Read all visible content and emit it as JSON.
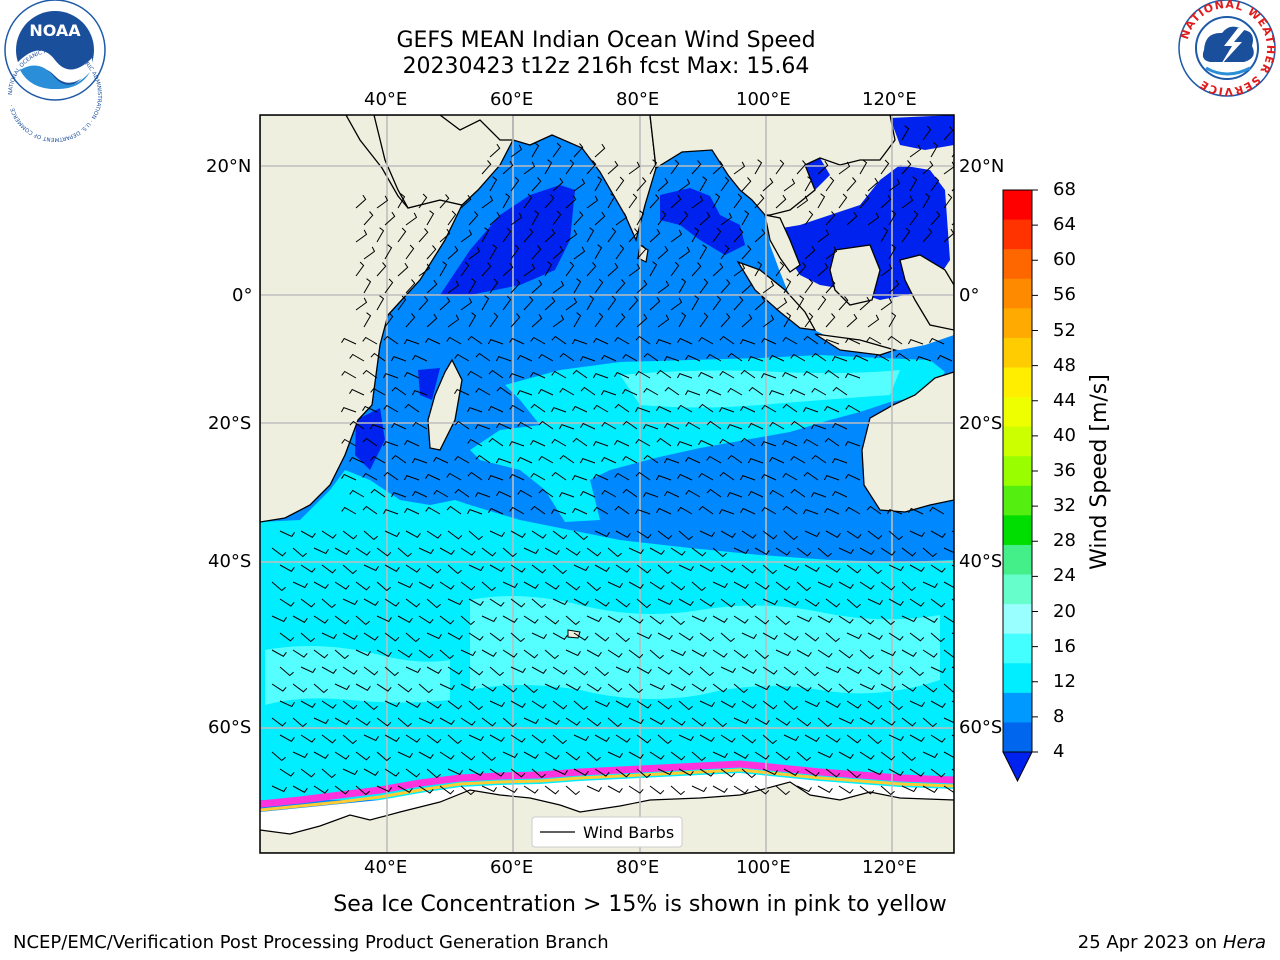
{
  "title": {
    "line1": "GEFS MEAN Indian Ocean Wind Speed",
    "line2": "20230423 t12z 216h fcst   Max: 15.64"
  },
  "map": {
    "lon_labels": [
      "40°E",
      "60°E",
      "80°E",
      "100°E",
      "120°E"
    ],
    "lat_labels": [
      "20°N",
      "0°",
      "20°S",
      "40°S",
      "60°S"
    ],
    "colors": {
      "land": "#efefdf",
      "ice": "#ffffff",
      "grid": "#bdbdbd"
    },
    "legend_label": "Wind Barbs"
  },
  "colorbar": {
    "label": "Wind Speed [m/s]",
    "ticks": [
      "68",
      "64",
      "60",
      "56",
      "52",
      "48",
      "44",
      "40",
      "36",
      "32",
      "28",
      "24",
      "20",
      "16",
      "12",
      "8",
      "4"
    ],
    "colors": [
      "#fe0000",
      "#fe3300",
      "#fe6600",
      "#fe8a00",
      "#feaa00",
      "#fecc00",
      "#ffee00",
      "#eeff00",
      "#ccff00",
      "#99ff00",
      "#55ee11",
      "#00dd00",
      "#44ee88",
      "#66ffcc",
      "#99ffff",
      "#44ffff",
      "#00eeff",
      "#0099ff",
      "#0066ee"
    ],
    "extend_color": "#0022ee"
  },
  "subtitle": "Sea Ice Concentration > 15% is shown in pink to yellow",
  "footer": {
    "left": "NCEP/EMC/Verification Post Processing Product Generation Branch",
    "right_date": "25 Apr 2023 on ",
    "right_host": "Hera"
  },
  "logos": {
    "left": "NOAA",
    "left_ring": "NATIONAL OCEANIC AND ATMOSPHERIC ADMINISTRATION · U.S. DEPARTMENT OF COMMERCE ·",
    "right_ring": "NATIONAL WEATHER SERVICE"
  }
}
